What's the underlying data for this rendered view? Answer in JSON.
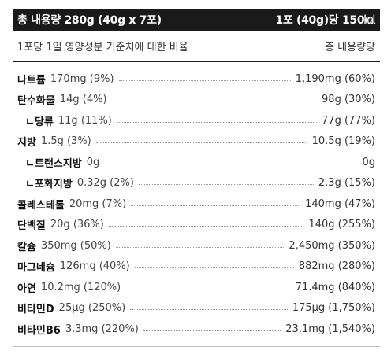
{
  "header": {
    "left": "총 내용량 280g (40g x 7포)",
    "right": "1포 (40g)당 150㎉"
  },
  "subhead": {
    "left": "1포당 1일 영양성분 기준치에 대한 비율",
    "right": "총 내용량당"
  },
  "rows": [
    {
      "name": "나트륨",
      "amount": "170mg (9%)",
      "total": "1,190mg (60%)"
    },
    {
      "name": "탄수화물",
      "amount": "14g (4%)",
      "total": "98g (30%)"
    },
    {
      "name": "ㄴ당류",
      "amount": "11g (11%)",
      "total": "77g (77%)"
    },
    {
      "name": "지방",
      "amount": "1.5g (3%)",
      "total": "10.5g (19%)"
    },
    {
      "name": "ㄴ트랜스지방",
      "amount": "0g",
      "total": "0g"
    },
    {
      "name": "ㄴ포화지방",
      "amount": "0.32g (2%)",
      "total": "2.3g (15%)"
    },
    {
      "name": "콜레스테롤",
      "amount": "20mg (7%)",
      "total": "140mg (47%)"
    },
    {
      "name": "단백질",
      "amount": "20g (36%)",
      "total": "140g (255%)"
    },
    {
      "name": "칼슘",
      "amount": "350mg (50%)",
      "total": "2,450mg (350%)"
    },
    {
      "name": "마그네슘",
      "amount": "126mg (40%)",
      "total": "882mg (280%)"
    },
    {
      "name": "아연",
      "amount": "10.2mg (120%)",
      "total": "71.4mg (840%)"
    },
    {
      "name": "비타민D",
      "amount": "25μg (250%)",
      "total": "175μg (1,750%)"
    },
    {
      "name": "비타민B6",
      "amount": "3.3mg (220%)",
      "total": "23.1mg (1,540%)"
    }
  ]
}
